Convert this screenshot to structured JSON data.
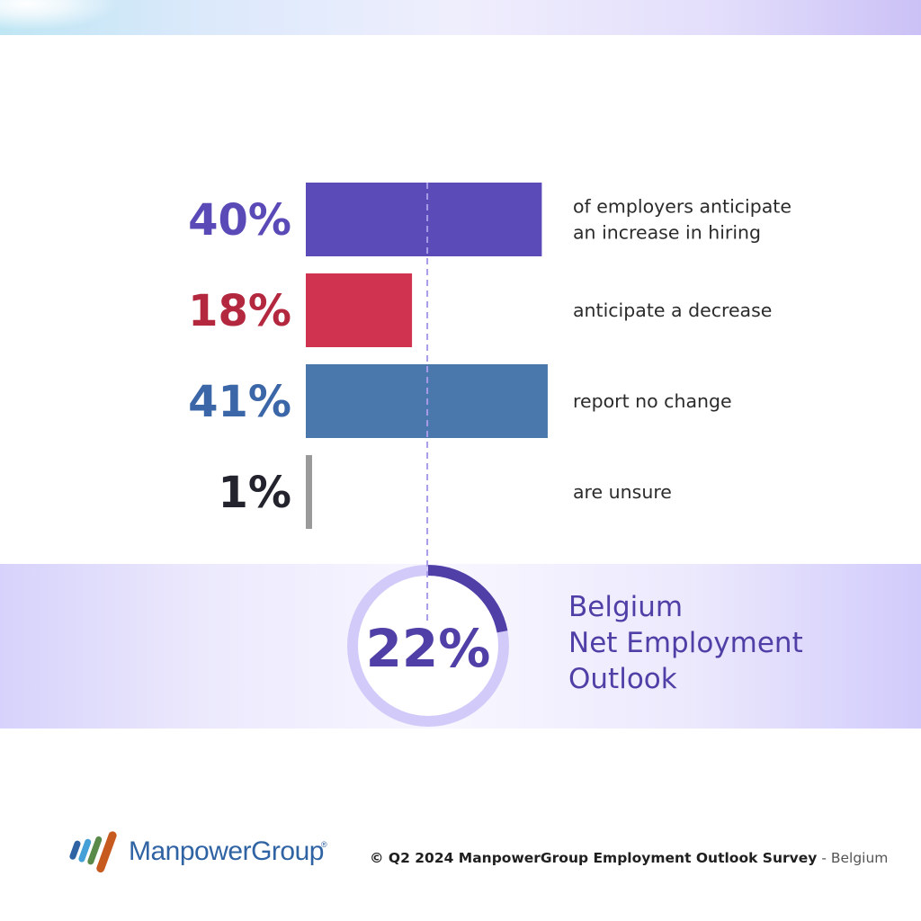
{
  "chart_data": {
    "type": "bar",
    "orientation": "horizontal",
    "bars": [
      {
        "value": 40,
        "value_label": "40%",
        "label_lines": [
          "of employers anticipate",
          "an increase in hiring"
        ],
        "color": "#5a4ab8",
        "bar_color": "#5b4bb9"
      },
      {
        "value": 18,
        "value_label": "18%",
        "label_lines": [
          "anticipate a decrease"
        ],
        "color": "#b3283e",
        "bar_color": "#cf3350"
      },
      {
        "value": 41,
        "value_label": "41%",
        "label_lines": [
          "report no change"
        ],
        "color": "#3b66a8",
        "bar_color": "#4a78ad"
      },
      {
        "value": 1,
        "value_label": "1%",
        "label_lines": [
          "are unsure"
        ],
        "color": "#23232e",
        "bar_color": "#9a9a9a"
      }
    ],
    "reference_value": 22,
    "max_value": 41
  },
  "neo": {
    "value": 22,
    "value_label": "22%",
    "label_lines": [
      "Belgium",
      "Net Employment",
      "Outlook"
    ],
    "ring_color": "#d2cbfa",
    "arc_color": "#4f3fa6"
  },
  "brand": {
    "name": "ManpowerGroup",
    "registered": "®",
    "stripe_colors": [
      "#2f63a3",
      "#44a0d6",
      "#5a8a4a",
      "#c75a1f"
    ]
  },
  "footer": {
    "source": "© Q2 2024 ManpowerGroup Employment Outlook Survey",
    "separator": "-",
    "country": "Belgium"
  },
  "colors": {
    "accent": "#4f3fa6",
    "dashed_line": "#a89be9"
  }
}
